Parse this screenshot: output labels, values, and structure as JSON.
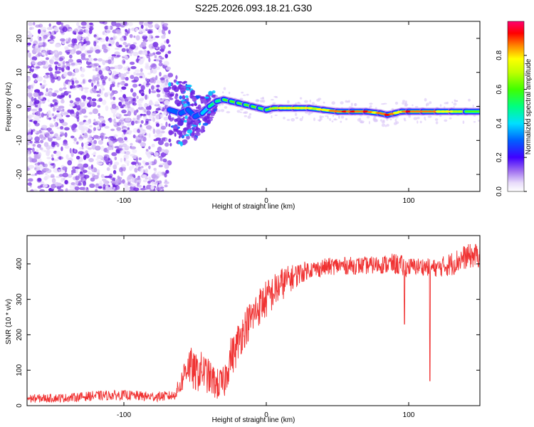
{
  "figure_title": "S225.2026.093.18.21.G30",
  "colors": {
    "scatter_palette": [
      "#ece2fb",
      "#d8c4f6",
      "#c2a1f1",
      "#a878ec",
      "#8d4ee8",
      "#7a2fe6",
      "#6a1fe0"
    ],
    "snr_line": "#f03232",
    "axis": "#000000"
  },
  "chart_data": [
    {
      "type": "heatmap",
      "xlabel": "Height of straight line (km)",
      "ylabel": "Frequency (Hz)",
      "xlim": [
        -168,
        150
      ],
      "ylim": [
        -25,
        25
      ],
      "xticks": [
        -100,
        0,
        100
      ],
      "yticks": [
        -20,
        -10,
        0,
        10,
        20
      ],
      "noise_region_x": [
        -168,
        -68
      ],
      "transition_region_x": [
        -68,
        -35
      ],
      "signal_trace": {
        "x": [
          -68,
          -60,
          -55,
          -50,
          -45,
          -40,
          -35,
          -30,
          -25,
          -20,
          -15,
          -10,
          -5,
          0,
          5,
          10,
          20,
          30,
          40,
          50,
          60,
          70,
          80,
          85,
          90,
          95,
          100,
          110,
          120,
          130,
          140,
          150
        ],
        "freq": [
          -1,
          -2,
          -1,
          -3,
          -2,
          0,
          1.5,
          2,
          1.5,
          1,
          0.5,
          0,
          -0.5,
          -1,
          -0.5,
          -0.5,
          -0.5,
          -0.5,
          -1,
          -1.5,
          -1.5,
          -1.5,
          -2,
          -2.5,
          -2,
          -1.5,
          -1.5,
          -1.5,
          -1.5,
          -1.5,
          -1.5,
          -1.5
        ],
        "amplitude": [
          0.2,
          0.3,
          0.35,
          0.3,
          0.35,
          0.45,
          0.55,
          0.6,
          0.6,
          0.6,
          0.6,
          0.65,
          0.7,
          0.7,
          0.75,
          0.8,
          0.85,
          0.8,
          0.8,
          0.9,
          0.95,
          0.9,
          0.85,
          0.9,
          0.85,
          0.85,
          0.9,
          0.9,
          0.85,
          0.75,
          0.7,
          0.7
        ]
      },
      "colorbar": {
        "label": "Normalized spectral amplitude",
        "range": [
          0,
          1
        ],
        "ticks": [
          "0.0",
          "0.2",
          "0.4",
          "0.6",
          "0.8"
        ],
        "tick_values": [
          0,
          0.2,
          0.4,
          0.6,
          0.8
        ]
      }
    },
    {
      "type": "line",
      "xlabel": "Height of straight line (km)",
      "ylabel": "SNR (10 * v/v)",
      "xlim": [
        -168,
        150
      ],
      "ylim": [
        0,
        480
      ],
      "xticks": [
        -100,
        0,
        100
      ],
      "yticks": [
        0,
        100,
        200,
        300,
        400
      ],
      "series": [
        {
          "name": "SNR",
          "x": [
            -168,
            -140,
            -120,
            -100,
            -80,
            -65,
            -60,
            -57,
            -55,
            -50,
            -45,
            -40,
            -35,
            -30,
            -25,
            -22,
            -20,
            -15,
            -10,
            -5,
            0,
            5,
            10,
            15,
            20,
            25,
            30,
            35,
            40,
            50,
            60,
            70,
            80,
            90,
            95,
            97,
            100,
            110,
            115,
            120,
            130,
            140,
            150
          ],
          "values": [
            20,
            22,
            28,
            30,
            25,
            28,
            60,
            100,
            120,
            90,
            100,
            80,
            60,
            60,
            140,
            150,
            180,
            220,
            250,
            280,
            300,
            320,
            340,
            355,
            365,
            375,
            385,
            385,
            390,
            395,
            395,
            395,
            398,
            400,
            395,
            390,
            392,
            393,
            390,
            388,
            400,
            420,
            425
          ],
          "noise_amplitude": [
            12,
            12,
            14,
            14,
            14,
            14,
            30,
            45,
            60,
            55,
            55,
            50,
            45,
            50,
            55,
            55,
            55,
            55,
            55,
            55,
            55,
            50,
            50,
            40,
            35,
            30,
            25,
            25,
            25,
            25,
            25,
            25,
            25,
            30,
            30,
            30,
            25,
            25,
            25,
            25,
            35,
            35,
            35
          ],
          "spikes": [
            {
              "x": 97,
              "value": 230
            },
            {
              "x": 115,
              "value": 70
            },
            {
              "x": 23,
              "value": 395
            }
          ]
        }
      ]
    }
  ]
}
